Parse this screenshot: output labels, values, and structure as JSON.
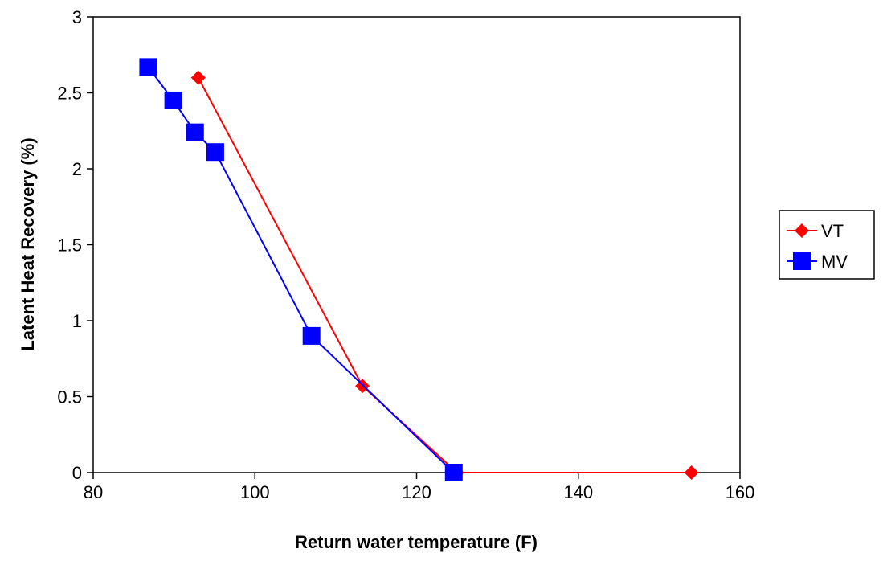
{
  "chart_data": {
    "type": "line",
    "title": "",
    "xlabel": "Return water temperature (F)",
    "ylabel": "Latent Heat Recovery (%)",
    "xlim": [
      80,
      160
    ],
    "ylim": [
      0,
      3
    ],
    "x_ticks": [
      80,
      100,
      120,
      140,
      160
    ],
    "y_ticks": [
      0,
      0.5,
      1,
      1.5,
      2,
      2.5,
      3
    ],
    "x_tick_labels": [
      "80",
      "100",
      "120",
      "140",
      "160"
    ],
    "y_tick_labels": [
      "0",
      "0.5",
      "1",
      "1.5",
      "2",
      "2.5",
      "3"
    ],
    "grid": false,
    "legend_position": "right",
    "series": [
      {
        "name": "VT",
        "color": "#ff0000",
        "marker": "diamond",
        "x": [
          93.0,
          113.3,
          125.0,
          154.0
        ],
        "y": [
          2.6,
          0.57,
          0.0,
          0.0
        ]
      },
      {
        "name": "MV",
        "color": "#0000ff",
        "marker": "square",
        "x": [
          86.8,
          89.9,
          92.6,
          95.1,
          107.0,
          124.6
        ],
        "y": [
          2.67,
          2.45,
          2.24,
          2.11,
          0.9,
          0.0
        ]
      }
    ]
  }
}
